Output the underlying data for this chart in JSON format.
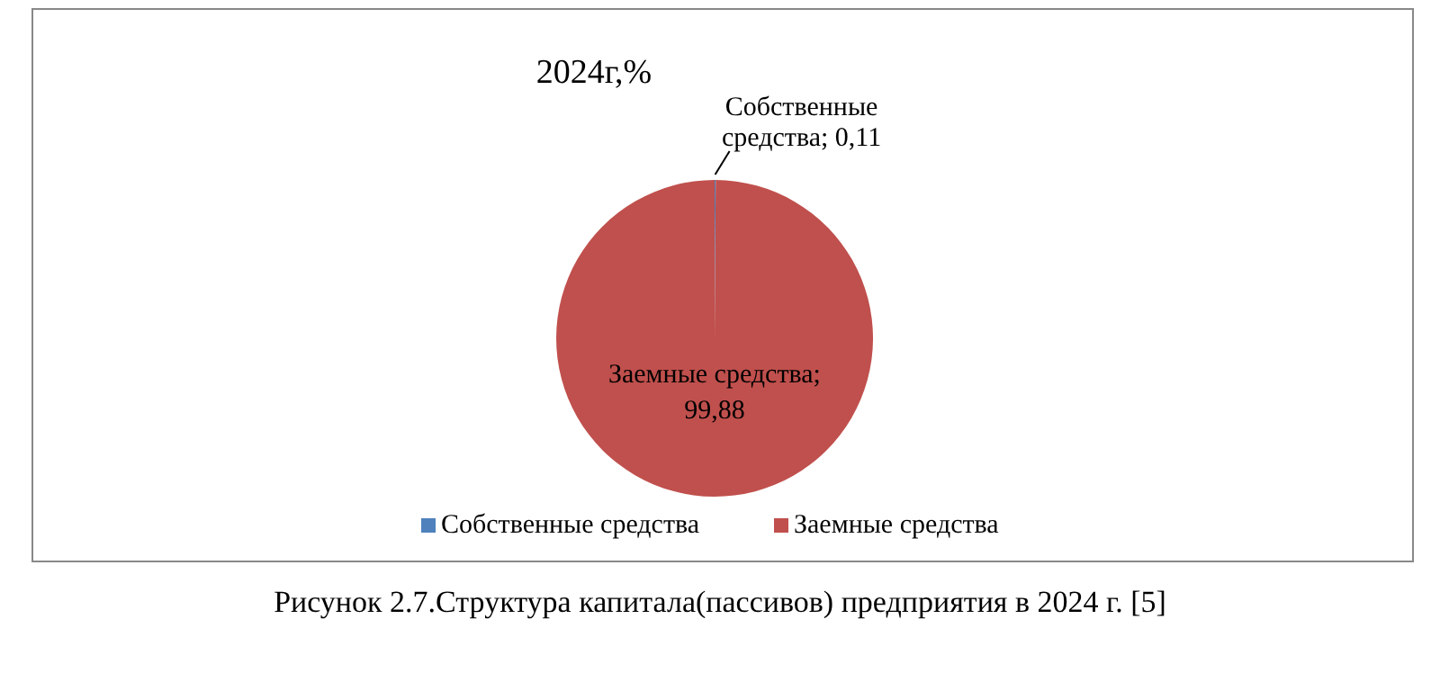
{
  "chart_data": {
    "type": "pie",
    "title": "2024г,%",
    "categories": [
      "Собственные средства",
      "Заемные средства"
    ],
    "values": [
      0.11,
      99.88
    ],
    "value_labels": [
      "Собственные средства; 0,11",
      "Заемные средства; 99,88"
    ],
    "colors": [
      "#4f81bd",
      "#c0504d"
    ],
    "legend": "bottom",
    "annotations": [
      "Рисунок 2.7.Структура капитала(пассивов) предприятия в 2024 г. [5]"
    ]
  }
}
